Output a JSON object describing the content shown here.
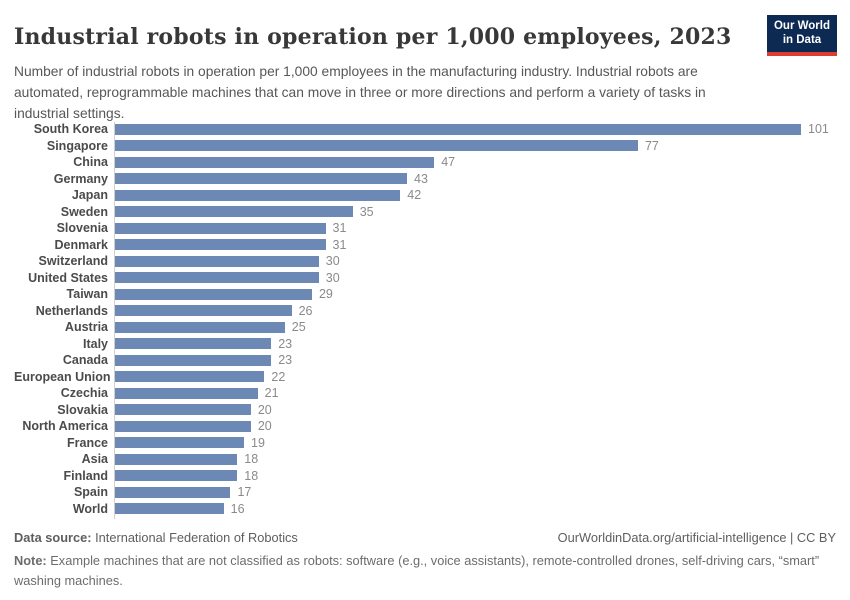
{
  "header": {
    "title": "Industrial robots in operation per 1,000 employees, 2023",
    "subtitle": "Number of industrial robots in operation per 1,000 employees in the manufacturing industry. Industrial robots are automated, reprogrammable machines that can move in three or more directions and perform a variety of tasks in industrial settings.",
    "logo": {
      "line1": "Our World",
      "line2": "in Data",
      "bg_color": "#0d2a52",
      "accent_color": "#dc3d33"
    }
  },
  "chart_data": {
    "type": "bar",
    "orientation": "horizontal",
    "title": "Industrial robots in operation per 1,000 employees, 2023",
    "categories": [
      "South Korea",
      "Singapore",
      "China",
      "Germany",
      "Japan",
      "Sweden",
      "Slovenia",
      "Denmark",
      "Switzerland",
      "United States",
      "Taiwan",
      "Netherlands",
      "Austria",
      "Italy",
      "Canada",
      "European Union",
      "Czechia",
      "Slovakia",
      "North America",
      "France",
      "Asia",
      "Finland",
      "Spain",
      "World"
    ],
    "values": [
      101,
      77,
      47,
      43,
      42,
      35,
      31,
      31,
      30,
      30,
      29,
      26,
      25,
      23,
      23,
      22,
      21,
      20,
      20,
      19,
      18,
      18,
      17,
      16
    ],
    "xlabel": "",
    "ylabel": "",
    "xlim": [
      0,
      101
    ],
    "grid": false,
    "legend": false,
    "bar_color": "#6c88b4",
    "value_label_color": "#8a8a8a",
    "category_label_color": "#4b4b4b"
  },
  "footer": {
    "source_label": "Data source:",
    "source_value": "International Federation of Robotics",
    "link": "OurWorldinData.org/artificial-intelligence | CC BY",
    "note_label": "Note:",
    "note_text": "Example machines that are not classified as robots: software (e.g., voice assistants), remote-controlled drones, self-driving cars, “smart” washing machines."
  }
}
